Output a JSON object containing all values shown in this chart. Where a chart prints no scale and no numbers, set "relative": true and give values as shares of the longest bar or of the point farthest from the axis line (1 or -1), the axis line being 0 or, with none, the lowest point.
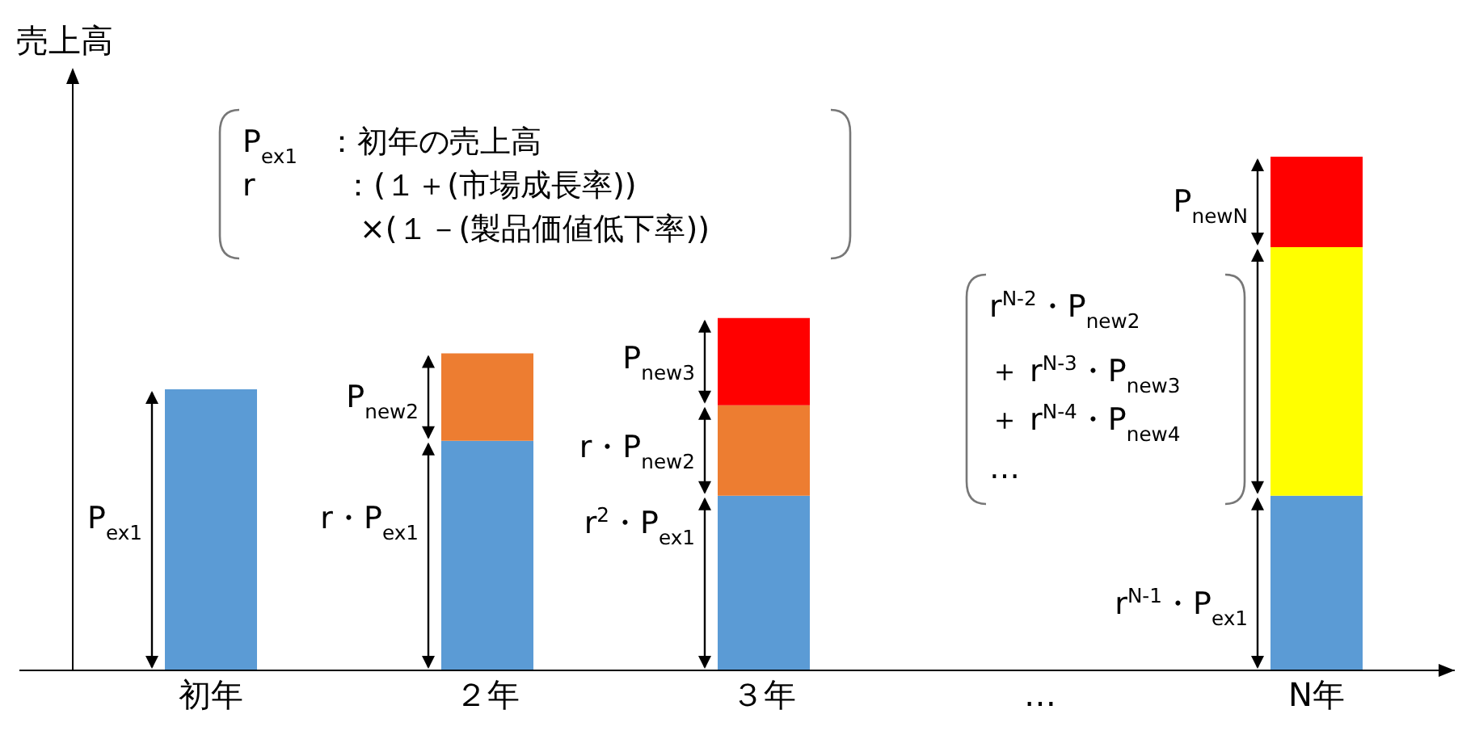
{
  "chart_data": {
    "type": "bar",
    "stacked": true,
    "relative": true,
    "ylabel": "売上高",
    "categories": [
      "初年",
      "２年",
      "３年",
      "…",
      "N年"
    ],
    "series": [
      {
        "color": "#5b9bd5",
        "values": [
          0.547,
          0.447,
          0.34,
          null,
          0.34
        ]
      },
      {
        "color": "#ed7d31",
        "values": [
          null,
          0.17,
          0.176,
          null,
          null
        ]
      },
      {
        "color": "#ffff00",
        "values": [
          null,
          null,
          null,
          null,
          0.484
        ]
      },
      {
        "color": "#ff0000",
        "values": [
          null,
          null,
          0.17,
          null,
          0.176
        ]
      }
    ],
    "annotations": [
      "P$_{ex1}$   ：初年の売上高",
      "r         ：(１＋(市場成長率))",
      "            ×(１－(製品価値低下率))",
      "P$_{ex1}$",
      "P$_{new2}$",
      "r・P$_{ex1}$",
      "P$_{new3}$",
      "r・P$_{new2}$",
      "r$^{2}$・P$_{ex1}$",
      "P$_{newN}$",
      "r$^{N-2}$・P$_{new2}$",
      "＋ r$^{N-3}$・P$_{new3}$",
      "＋ r$^{N-4}$・P$_{new4}$",
      "…",
      "r$^{N-1}$・P$_{ex1}$"
    ]
  }
}
